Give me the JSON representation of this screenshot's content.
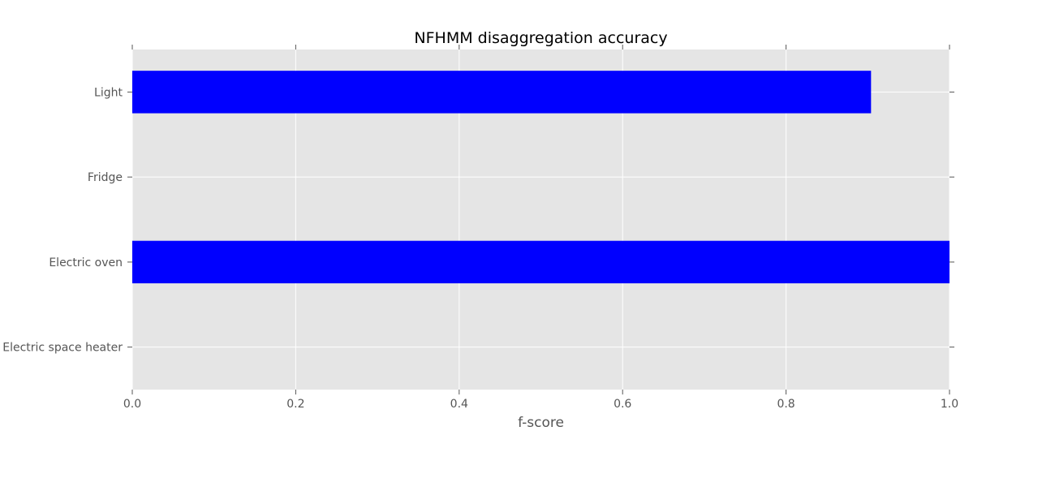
{
  "chart_data": {
    "type": "bar",
    "orientation": "horizontal",
    "title": "NFHMM disaggregation accuracy",
    "xlabel": "f-score",
    "ylabel": "",
    "categories": [
      "Light",
      "Fridge",
      "Electric oven",
      "Electric space heater"
    ],
    "values": [
      0.904,
      0,
      1.0,
      0
    ],
    "xlim": [
      0,
      1.0
    ],
    "xticks": [
      "0.0",
      "0.2",
      "0.4",
      "0.6",
      "0.8",
      "1.0"
    ],
    "grid": true,
    "legend": "none",
    "colors": {
      "bar": "#0000ff",
      "plot_background": "#e5e5e5",
      "grid": "#ffffff",
      "tick_text": "#555555"
    }
  }
}
